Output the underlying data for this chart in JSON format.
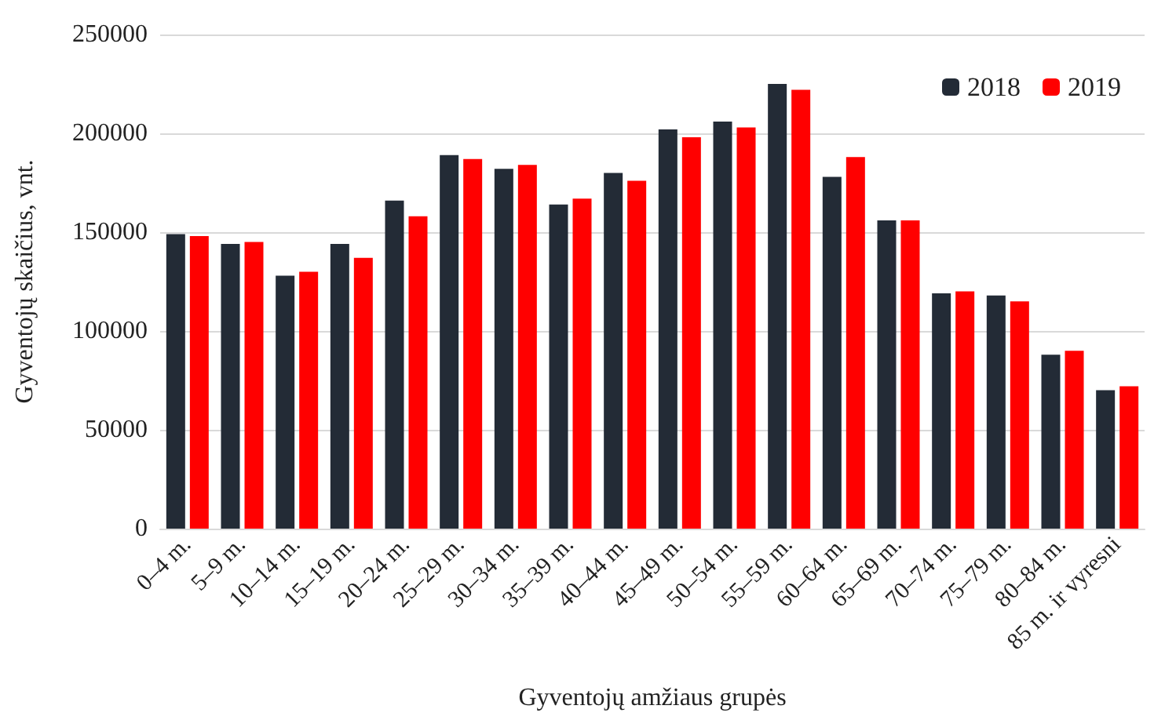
{
  "chart_data": {
    "type": "bar",
    "xlabel": "Gyventojų amžiaus grupės",
    "ylabel": "Gyventojų skaičius, vnt.",
    "categories": [
      "0–4 m.",
      "5–9 m.",
      "10–14 m.",
      "15–19 m.",
      "20–24 m.",
      "25–29 m.",
      "30–34 m.",
      "35–39 m.",
      "40–44 m.",
      "45–49 m.",
      "50–54 m.",
      "55–59 m.",
      "60–64 m.",
      "65–69 m.",
      "70–74 m.",
      "75–79 m.",
      "80–84 m.",
      "85 m. ir vyresni"
    ],
    "series": [
      {
        "name": "2018",
        "color": "#232b36",
        "values": [
          149000,
          144000,
          128000,
          144000,
          166000,
          189000,
          182000,
          164000,
          180000,
          202000,
          206000,
          225000,
          178000,
          156000,
          119000,
          118000,
          88000,
          70000
        ]
      },
      {
        "name": "2019",
        "color": "#ff0000",
        "values": [
          148000,
          145000,
          130000,
          137000,
          158000,
          187000,
          184000,
          167000,
          176000,
          198000,
          203000,
          222000,
          188000,
          156000,
          120000,
          115000,
          90000,
          72000
        ]
      }
    ],
    "ylim": [
      0,
      250000
    ],
    "yticks": [
      0,
      50000,
      100000,
      150000,
      200000,
      250000
    ],
    "grid": "y",
    "legend": "top right"
  }
}
